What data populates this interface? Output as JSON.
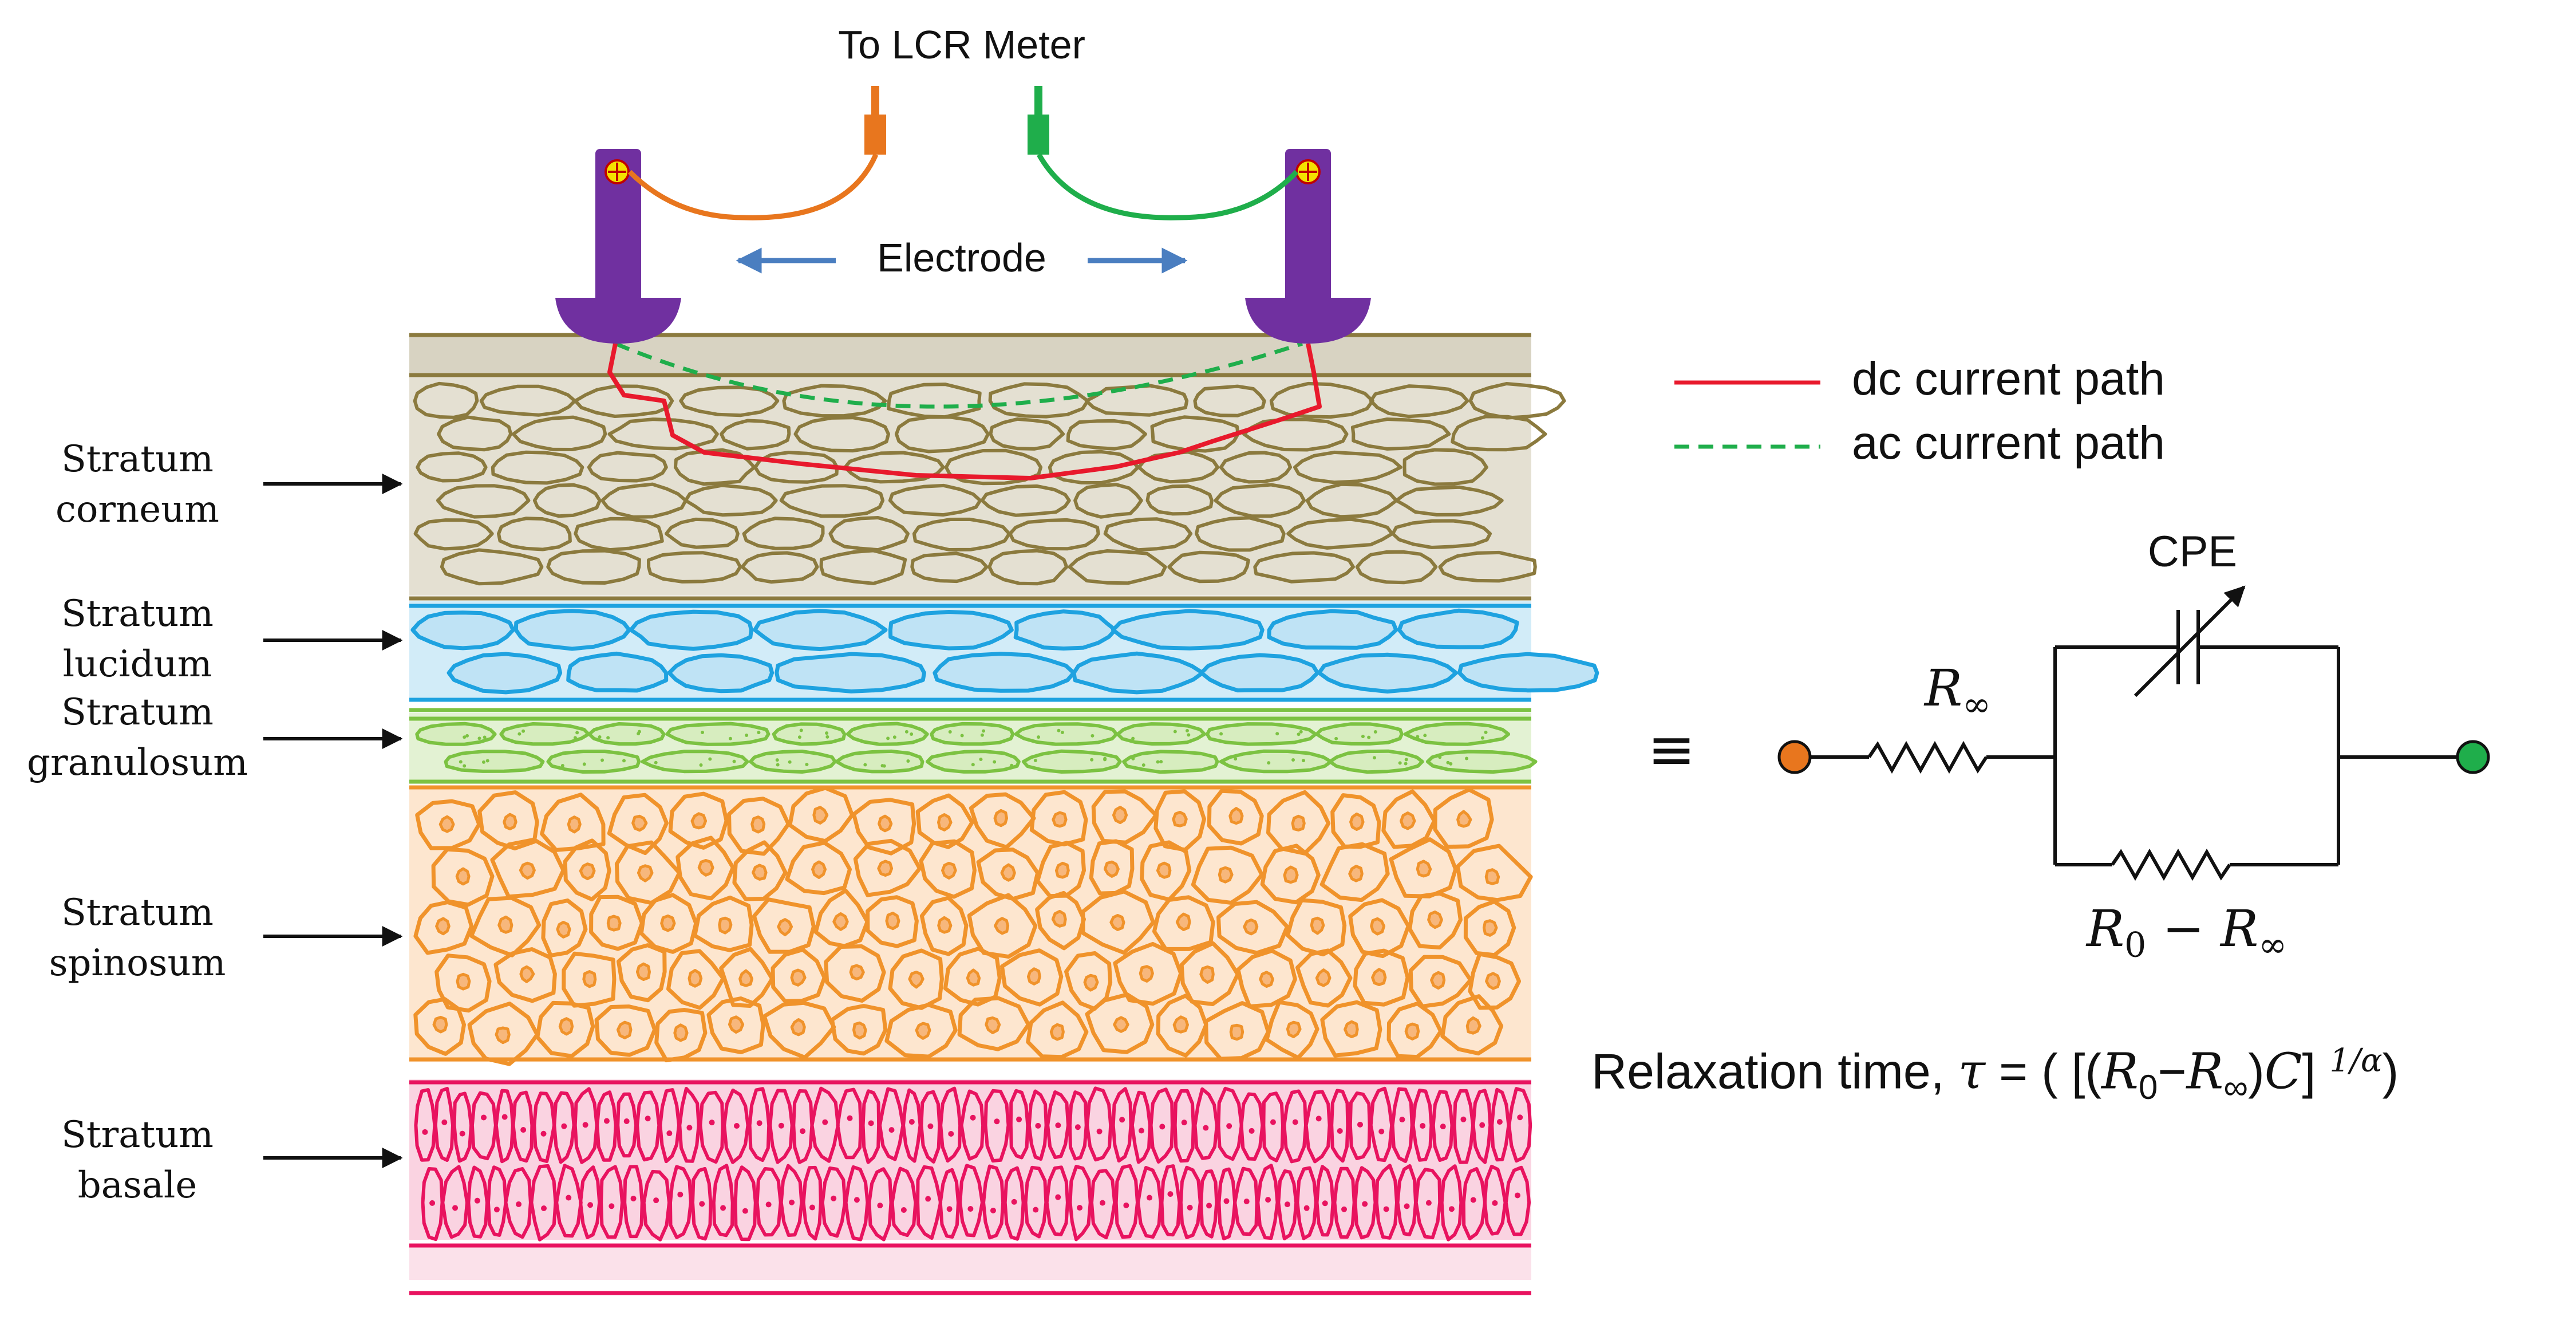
{
  "meter_label": "To LCR Meter",
  "electrode_label": "Electrode",
  "layers": [
    {
      "name": "Stratum corneum",
      "line1": "Stratum",
      "line2": "corneum",
      "color": "#8B7A3E",
      "fill": "#D8D3C2"
    },
    {
      "name": "Stratum lucidum",
      "line1": "Stratum",
      "line2": "lucidum",
      "color": "#1EA2E0",
      "fill": "#BFE3F5"
    },
    {
      "name": "Stratum granulosum",
      "line1": "Stratum",
      "line2": "granulosum",
      "color": "#7CC242",
      "fill": "#D7EDBF"
    },
    {
      "name": "Stratum spinosum",
      "line1": "Stratum",
      "line2": "spinosum",
      "color": "#F0932B",
      "fill": "#FBD8B5"
    },
    {
      "name": "Stratum basale",
      "line1": "Stratum",
      "line2": "basale",
      "color": "#E8135F",
      "fill": "#F7BFD3"
    }
  ],
  "legend": {
    "dc": {
      "label": "dc current path",
      "color": "#E8192C"
    },
    "ac": {
      "label": "ac current path",
      "color": "#1FAE4B"
    }
  },
  "circuit": {
    "cpe_label": "CPE",
    "r_inf_base": "R",
    "r_inf_sub": "∞",
    "r0_base": "R",
    "r0_sub": "0",
    "r0_minus": " − R",
    "r0_sub2": "∞",
    "equiv_symbol": "≡",
    "left_terminal_color": "#E8761E",
    "right_terminal_color": "#1FAE4B"
  },
  "relaxation": {
    "prefix": "Relaxation time, ",
    "tau": "τ",
    "eq": " = ( [(",
    "r0": "R",
    "r0_sub": "0",
    "minus": "−",
    "rinf": "R",
    "rinf_sub": "∞",
    "close": ")",
    "c": "C",
    "end": "] ",
    "exp": "1/α",
    "paren": ")"
  },
  "colors": {
    "electrode": "#7030A0",
    "lead_left": "#E8761E",
    "lead_right": "#1FAE4B",
    "arrow_blue": "#4A7EC0"
  }
}
